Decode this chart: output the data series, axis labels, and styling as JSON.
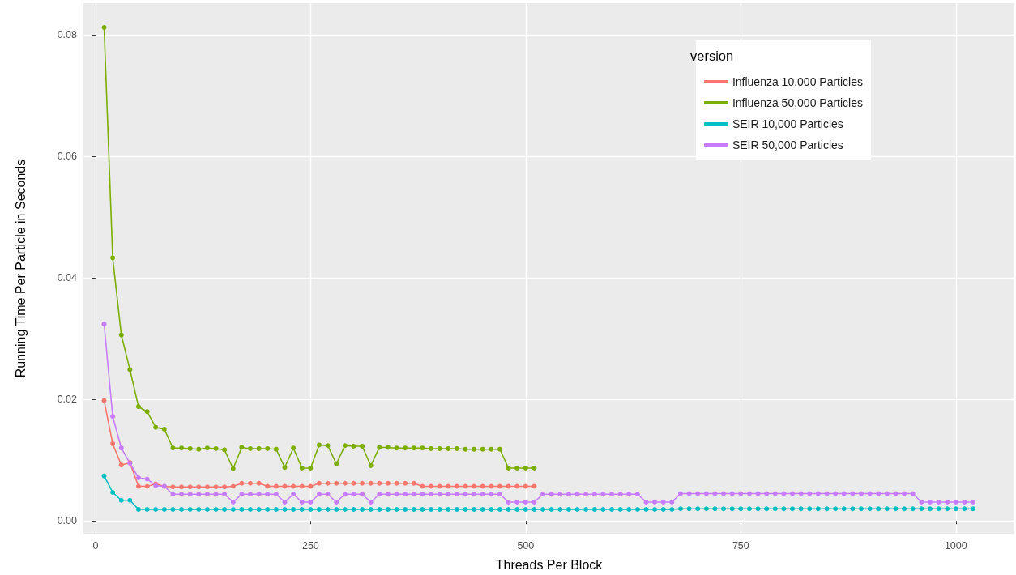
{
  "chart_data": {
    "type": "line",
    "xlabel": "Threads Per Block",
    "ylabel": "Running Time Per Particle in Seconds",
    "legend_title": "version",
    "legend": "top right",
    "grid": true,
    "marker": "circle",
    "line_style": "solid",
    "xlim": [
      -14,
      1068
    ],
    "xticks": [
      0,
      250,
      500,
      750,
      1000
    ],
    "ylim": [
      -0.0021,
      0.0852
    ],
    "yticks": [
      {
        "value": 0,
        "label": "0.00"
      },
      {
        "value": 0.02,
        "label": "0.02"
      },
      {
        "value": 0.04,
        "label": "0.04"
      },
      {
        "value": 0.06,
        "label": "0.06"
      },
      {
        "value": 0.08,
        "label": "0.08"
      }
    ],
    "series": [
      {
        "name": "Influenza 10,000 Particles",
        "color": "#f8766d",
        "x": [
          10,
          20,
          30,
          40,
          50,
          60,
          70,
          80,
          90,
          100,
          110,
          120,
          130,
          140,
          150,
          160,
          170,
          180,
          190,
          200,
          210,
          220,
          230,
          240,
          250,
          260,
          270,
          280,
          290,
          300,
          310,
          320,
          330,
          340,
          350,
          360,
          370,
          380,
          390,
          400,
          410,
          420,
          430,
          440,
          450,
          460,
          470,
          480,
          490,
          500,
          510
        ],
        "values": [
          0.0198,
          0.0127,
          0.0092,
          0.0096,
          0.0057,
          0.0057,
          0.0061,
          0.0057,
          0.0056,
          0.0056,
          0.0056,
          0.0056,
          0.0056,
          0.0056,
          0.0056,
          0.0057,
          0.0062,
          0.0062,
          0.0062,
          0.0057,
          0.0057,
          0.0057,
          0.0057,
          0.0057,
          0.0057,
          0.0062,
          0.0062,
          0.0062,
          0.0062,
          0.0062,
          0.0062,
          0.0062,
          0.0062,
          0.0062,
          0.0062,
          0.0062,
          0.0062,
          0.0057,
          0.0057,
          0.0057,
          0.0057,
          0.0057,
          0.0057,
          0.0057,
          0.0057,
          0.0057,
          0.0057,
          0.0057,
          0.0057,
          0.0057,
          0.0057
        ]
      },
      {
        "name": "Influenza 50,000 Particles",
        "color": "#7cae00",
        "x": [
          10,
          20,
          30,
          40,
          50,
          60,
          70,
          80,
          90,
          100,
          110,
          120,
          130,
          140,
          150,
          160,
          170,
          180,
          190,
          200,
          210,
          220,
          230,
          240,
          250,
          260,
          270,
          280,
          290,
          300,
          310,
          320,
          330,
          340,
          350,
          360,
          370,
          380,
          390,
          400,
          410,
          420,
          430,
          440,
          450,
          460,
          470,
          480,
          490,
          500,
          510
        ],
        "values": [
          0.0812,
          0.0433,
          0.0306,
          0.0249,
          0.0188,
          0.018,
          0.0154,
          0.0151,
          0.012,
          0.012,
          0.0119,
          0.0118,
          0.012,
          0.0119,
          0.0117,
          0.0086,
          0.0121,
          0.0119,
          0.0119,
          0.0119,
          0.0118,
          0.0088,
          0.012,
          0.0087,
          0.0087,
          0.0125,
          0.0124,
          0.0094,
          0.0124,
          0.0123,
          0.0123,
          0.0091,
          0.0121,
          0.0121,
          0.012,
          0.012,
          0.012,
          0.012,
          0.0119,
          0.0119,
          0.0119,
          0.0119,
          0.0118,
          0.0118,
          0.0118,
          0.0118,
          0.0118,
          0.0087,
          0.0087,
          0.0087,
          0.0087
        ]
      },
      {
        "name": "SEIR 10,000 Particles",
        "color": "#00bfc4",
        "x": [
          10,
          20,
          30,
          40,
          50,
          60,
          70,
          80,
          90,
          100,
          110,
          120,
          130,
          140,
          150,
          160,
          170,
          180,
          190,
          200,
          210,
          220,
          230,
          240,
          250,
          260,
          270,
          280,
          290,
          300,
          310,
          320,
          330,
          340,
          350,
          360,
          370,
          380,
          390,
          400,
          410,
          420,
          430,
          440,
          450,
          460,
          470,
          480,
          490,
          500,
          510,
          520,
          530,
          540,
          550,
          560,
          570,
          580,
          590,
          600,
          610,
          620,
          630,
          640,
          650,
          660,
          670,
          680,
          690,
          700,
          710,
          720,
          730,
          740,
          750,
          760,
          770,
          780,
          790,
          800,
          810,
          820,
          830,
          840,
          850,
          860,
          870,
          880,
          890,
          900,
          910,
          920,
          930,
          940,
          950,
          960,
          970,
          980,
          990,
          1000,
          1010,
          1020
        ],
        "values": [
          0.0074,
          0.0047,
          0.0034,
          0.0034,
          0.0019,
          0.0019,
          0.0019,
          0.0019,
          0.0019,
          0.0019,
          0.0019,
          0.0019,
          0.0019,
          0.0019,
          0.0019,
          0.0019,
          0.0019,
          0.0019,
          0.0019,
          0.0019,
          0.0019,
          0.0019,
          0.0019,
          0.0019,
          0.0019,
          0.0019,
          0.0019,
          0.0019,
          0.0019,
          0.0019,
          0.0019,
          0.0019,
          0.0019,
          0.0019,
          0.0019,
          0.0019,
          0.0019,
          0.0019,
          0.0019,
          0.0019,
          0.0019,
          0.0019,
          0.0019,
          0.0019,
          0.0019,
          0.0019,
          0.0019,
          0.0019,
          0.0019,
          0.0019,
          0.0019,
          0.0019,
          0.0019,
          0.0019,
          0.0019,
          0.0019,
          0.0019,
          0.0019,
          0.0019,
          0.0019,
          0.0019,
          0.0019,
          0.0019,
          0.0019,
          0.0019,
          0.0019,
          0.0019,
          0.002,
          0.002,
          0.002,
          0.002,
          0.002,
          0.002,
          0.002,
          0.002,
          0.002,
          0.002,
          0.002,
          0.002,
          0.002,
          0.002,
          0.002,
          0.002,
          0.002,
          0.002,
          0.002,
          0.002,
          0.002,
          0.002,
          0.002,
          0.002,
          0.002,
          0.002,
          0.002,
          0.002,
          0.002,
          0.002,
          0.002,
          0.002,
          0.002,
          0.002,
          0.002
        ]
      },
      {
        "name": "SEIR 50,000 Particles",
        "color": "#c77cff",
        "x": [
          10,
          20,
          30,
          40,
          50,
          60,
          70,
          80,
          90,
          100,
          110,
          120,
          130,
          140,
          150,
          160,
          170,
          180,
          190,
          200,
          210,
          220,
          230,
          240,
          250,
          260,
          270,
          280,
          290,
          300,
          310,
          320,
          330,
          340,
          350,
          360,
          370,
          380,
          390,
          400,
          410,
          420,
          430,
          440,
          450,
          460,
          470,
          480,
          490,
          500,
          510,
          520,
          530,
          540,
          550,
          560,
          570,
          580,
          590,
          600,
          610,
          620,
          630,
          640,
          650,
          660,
          670,
          680,
          690,
          700,
          710,
          720,
          730,
          740,
          750,
          760,
          770,
          780,
          790,
          800,
          810,
          820,
          830,
          840,
          850,
          860,
          870,
          880,
          890,
          900,
          910,
          920,
          930,
          940,
          950,
          960,
          970,
          980,
          990,
          1000,
          1010,
          1020
        ],
        "values": [
          0.0324,
          0.0172,
          0.012,
          0.0095,
          0.0071,
          0.0069,
          0.0058,
          0.0057,
          0.0044,
          0.0044,
          0.0044,
          0.0044,
          0.0044,
          0.0044,
          0.0044,
          0.0031,
          0.0044,
          0.0044,
          0.0044,
          0.0044,
          0.0044,
          0.0031,
          0.0044,
          0.0031,
          0.0031,
          0.0044,
          0.0044,
          0.0031,
          0.0044,
          0.0044,
          0.0044,
          0.0031,
          0.0044,
          0.0044,
          0.0044,
          0.0044,
          0.0044,
          0.0044,
          0.0044,
          0.0044,
          0.0044,
          0.0044,
          0.0044,
          0.0044,
          0.0044,
          0.0044,
          0.0044,
          0.0031,
          0.0031,
          0.0031,
          0.0031,
          0.0044,
          0.0044,
          0.0044,
          0.0044,
          0.0044,
          0.0044,
          0.0044,
          0.0044,
          0.0044,
          0.0044,
          0.0044,
          0.0044,
          0.0031,
          0.0031,
          0.0031,
          0.0031,
          0.0045,
          0.0045,
          0.0045,
          0.0045,
          0.0045,
          0.0045,
          0.0045,
          0.0045,
          0.0045,
          0.0045,
          0.0045,
          0.0045,
          0.0045,
          0.0045,
          0.0045,
          0.0045,
          0.0045,
          0.0045,
          0.0045,
          0.0045,
          0.0045,
          0.0045,
          0.0045,
          0.0045,
          0.0045,
          0.0045,
          0.0045,
          0.0045,
          0.0031,
          0.0031,
          0.0031,
          0.0031,
          0.0031,
          0.0031,
          0.0031
        ]
      }
    ]
  }
}
